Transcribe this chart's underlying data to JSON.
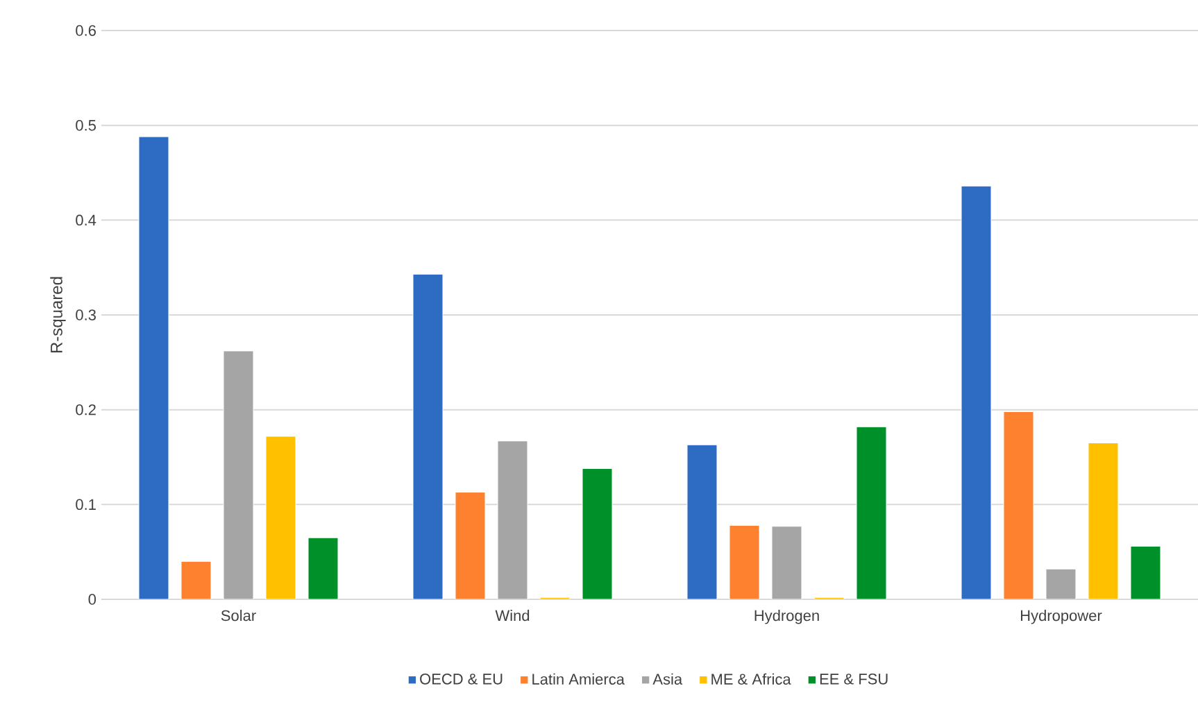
{
  "chart_data": {
    "type": "bar",
    "ylabel": "R-squared",
    "categories": [
      "Solar",
      "Wind",
      "Hydrogen",
      "Hydropower"
    ],
    "series": [
      {
        "name": "OECD & EU",
        "color": "#2e6bc2",
        "values": [
          0.488,
          0.343,
          0.163,
          0.436
        ]
      },
      {
        "name": "Latin Amierca",
        "color": "#fd812e",
        "values": [
          0.04,
          0.113,
          0.078,
          0.198
        ]
      },
      {
        "name": "Asia",
        "color": "#a5a5a5",
        "values": [
          0.262,
          0.167,
          0.077,
          0.032
        ]
      },
      {
        "name": "ME & Africa",
        "color": "#ffc000",
        "values": [
          0.172,
          0.002,
          0.002,
          0.165
        ]
      },
      {
        "name": "EE & FSU",
        "color": "#00902a",
        "values": [
          0.065,
          0.138,
          0.182,
          0.056
        ]
      }
    ],
    "ylim": [
      0,
      0.6
    ],
    "yticks": [
      0,
      0.1,
      0.2,
      0.3,
      0.4,
      0.5,
      0.6
    ],
    "grid": "y",
    "legend": "bottom"
  }
}
